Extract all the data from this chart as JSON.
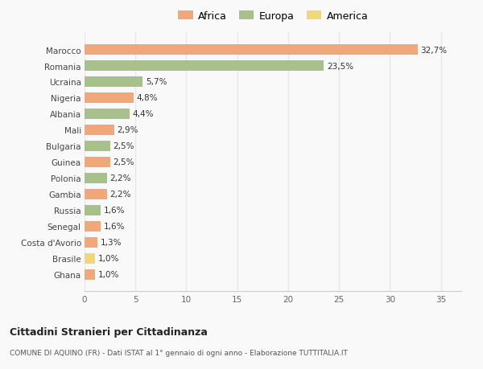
{
  "countries": [
    "Ghana",
    "Brasile",
    "Costa d'Avorio",
    "Senegal",
    "Russia",
    "Gambia",
    "Polonia",
    "Guinea",
    "Bulgaria",
    "Mali",
    "Albania",
    "Nigeria",
    "Ucraina",
    "Romania",
    "Marocco"
  ],
  "values": [
    1.0,
    1.0,
    1.3,
    1.6,
    1.6,
    2.2,
    2.2,
    2.5,
    2.5,
    2.9,
    4.4,
    4.8,
    5.7,
    23.5,
    32.7
  ],
  "labels": [
    "1,0%",
    "1,0%",
    "1,3%",
    "1,6%",
    "1,6%",
    "2,2%",
    "2,2%",
    "2,5%",
    "2,5%",
    "2,9%",
    "4,4%",
    "4,8%",
    "5,7%",
    "23,5%",
    "32,7%"
  ],
  "continents": [
    "Africa",
    "America",
    "Africa",
    "Africa",
    "Europa",
    "Africa",
    "Europa",
    "Africa",
    "Europa",
    "Africa",
    "Europa",
    "Africa",
    "Europa",
    "Europa",
    "Africa"
  ],
  "colors": {
    "Africa": "#F0A87A",
    "Europa": "#A8C08A",
    "America": "#F0D87A"
  },
  "legend_labels": [
    "Africa",
    "Europa",
    "America"
  ],
  "legend_colors": [
    "#F0A87A",
    "#A8C08A",
    "#F0D87A"
  ],
  "title1": "Cittadini Stranieri per Cittadinanza",
  "title2": "COMUNE DI AQUINO (FR) - Dati ISTAT al 1° gennaio di ogni anno - Elaborazione TUTTITALIA.IT",
  "xlim": [
    0,
    37
  ],
  "xticks": [
    0,
    5,
    10,
    15,
    20,
    25,
    30,
    35
  ],
  "background_color": "#f9f9f9",
  "grid_color": "#e8e8e8"
}
